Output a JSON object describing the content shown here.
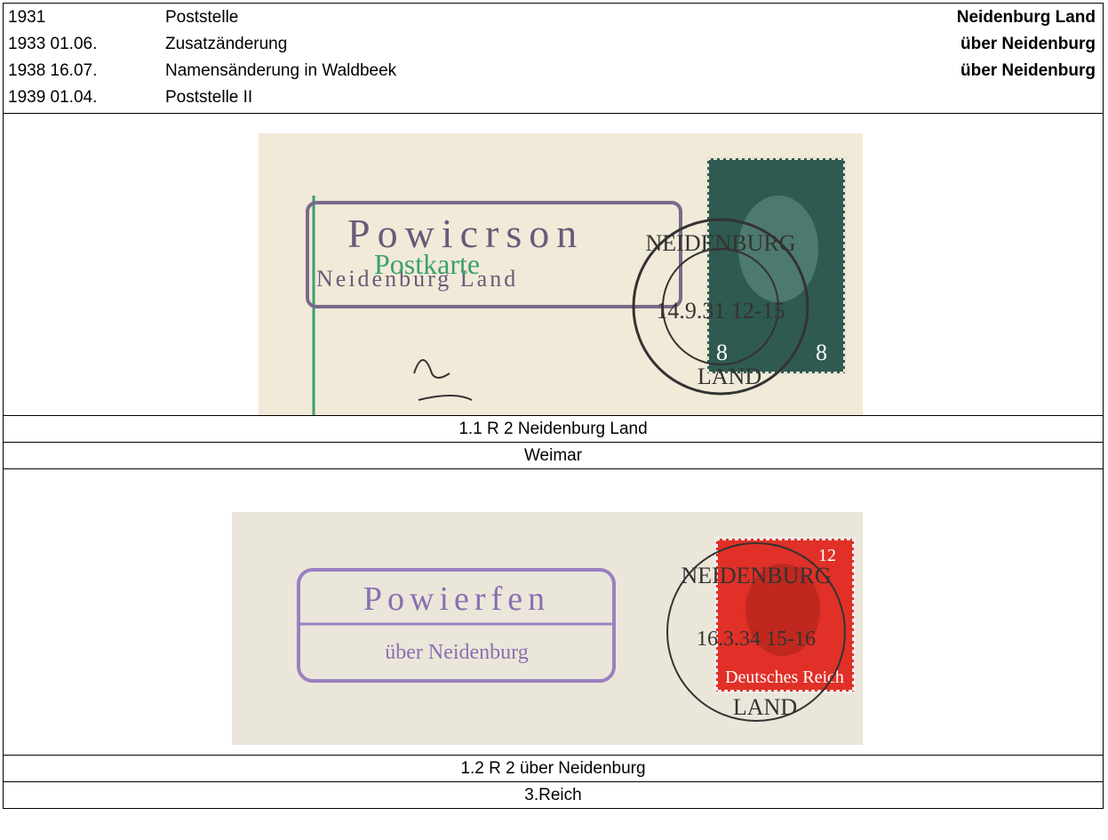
{
  "header": {
    "rows": [
      [
        "1931",
        "Poststelle",
        "Neidenburg Land"
      ],
      [
        "1933 01.06.",
        "Zusatzänderung",
        "über Neidenburg"
      ],
      [
        "1938 16.07.",
        "Namensänderung in Waldbeek",
        "über Neidenburg"
      ],
      [
        "1939 01.04.",
        "Poststelle II"
      ]
    ]
  },
  "sections": [
    {
      "image": {
        "name": "Powicrson",
        "place": "Neidenburg Land",
        "card": "Postkarte",
        "date": "14.9.31 12-15",
        "city": "NEIDENBURG",
        "land": "LAND",
        "value": "8"
      },
      "caption": "1.1  R 2 Neidenburg Land",
      "period": "Weimar"
    },
    {
      "image": {
        "name": "Powierfen",
        "place": "über Neidenburg",
        "date": "16.3.34 15-16",
        "city": "NEIDENBURG",
        "land": "LAND",
        "value": "12",
        "country": "Deutsches Reich"
      },
      "caption": "1.2  R 2 über Neidenburg",
      "period": "3.Reich"
    }
  ]
}
